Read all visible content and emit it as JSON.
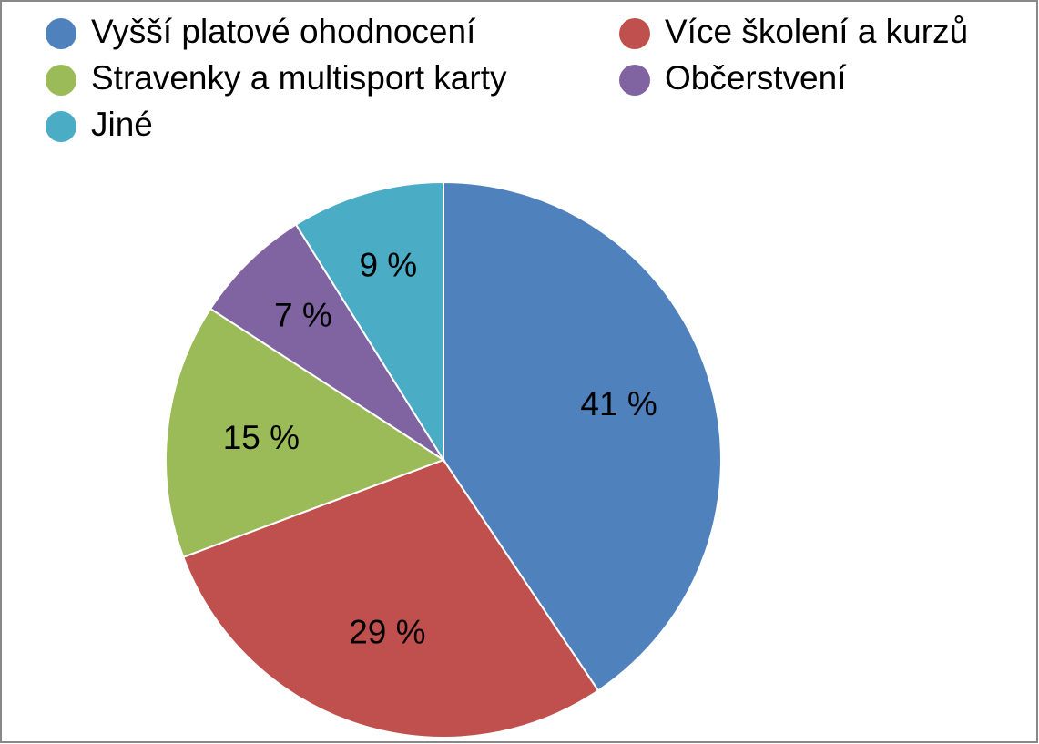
{
  "chart_data": {
    "type": "pie",
    "categories": [
      "Vyšší platové ohodnocení",
      "Více školení a kurzů",
      "Stravenky a multisport karty",
      "Občerstvení",
      "Jiné"
    ],
    "values": [
      41,
      29,
      15,
      7,
      9
    ],
    "value_labels": [
      "41 %",
      "29 %",
      "15 %",
      "7 %",
      "9 %"
    ],
    "colors": [
      "#4f81bd",
      "#c0504d",
      "#9bbb59",
      "#8064a2",
      "#4bacc6"
    ],
    "legend": "top"
  }
}
